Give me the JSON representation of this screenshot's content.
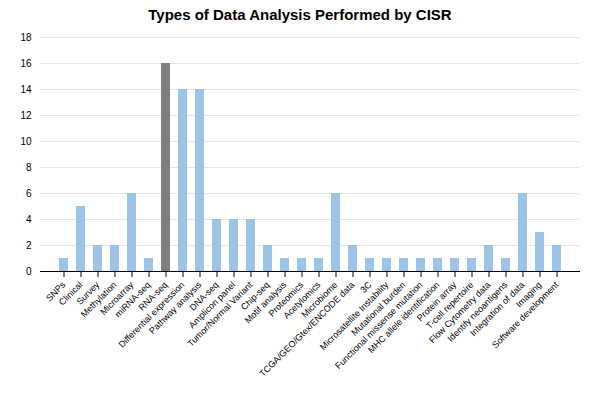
{
  "chart_data": {
    "type": "bar",
    "title": "Types of Data Analysis Performed by CISR",
    "categories": [
      "SNPs",
      "Clinical",
      "Survey",
      "Methylation",
      "Microarray",
      "miRNA-seq",
      "RNA-seq",
      "Differential expression",
      "Pathway analysis",
      "DNA-seq",
      "Amplicon panel",
      "Tumor/Normal Variant",
      "Chip-seq",
      "Motif analysis",
      "Proteomics",
      "Acetylomics",
      "Microbiome",
      "TCGA/GEO/Gtex/ENCODE data",
      "3C",
      "Microsatellite Instability",
      "Mutational burden",
      "Functional missense mutation",
      "MHC allele identification",
      "Protein array",
      "T-cell repertoire",
      "Flow Cytometry data",
      "Identify neoantigens",
      "Integration of data",
      "Imaging",
      "Software development"
    ],
    "values": [
      1,
      5,
      2,
      2,
      6,
      1,
      16,
      14,
      14,
      4,
      4,
      4,
      2,
      1,
      1,
      1,
      6,
      2,
      1,
      1,
      1,
      1,
      1,
      1,
      1,
      2,
      1,
      6,
      3,
      2
    ],
    "colors": [
      "#9dc3e6",
      "#9dc3e6",
      "#9dc3e6",
      "#9dc3e6",
      "#9dc3e6",
      "#9dc3e6",
      "#7f7f7f",
      "#9dc3e6",
      "#9dc3e6",
      "#9dc3e6",
      "#9dc3e6",
      "#9dc3e6",
      "#9dc3e6",
      "#9dc3e6",
      "#9dc3e6",
      "#9dc3e6",
      "#9dc3e6",
      "#9dc3e6",
      "#9dc3e6",
      "#9dc3e6",
      "#9dc3e6",
      "#9dc3e6",
      "#9dc3e6",
      "#9dc3e6",
      "#9dc3e6",
      "#9dc3e6",
      "#9dc3e6",
      "#9dc3e6",
      "#9dc3e6",
      "#9dc3e6"
    ],
    "ylim": [
      0,
      18
    ],
    "yticks": [
      0,
      2,
      4,
      6,
      8,
      10,
      12,
      14,
      16,
      18
    ],
    "grid": true
  }
}
